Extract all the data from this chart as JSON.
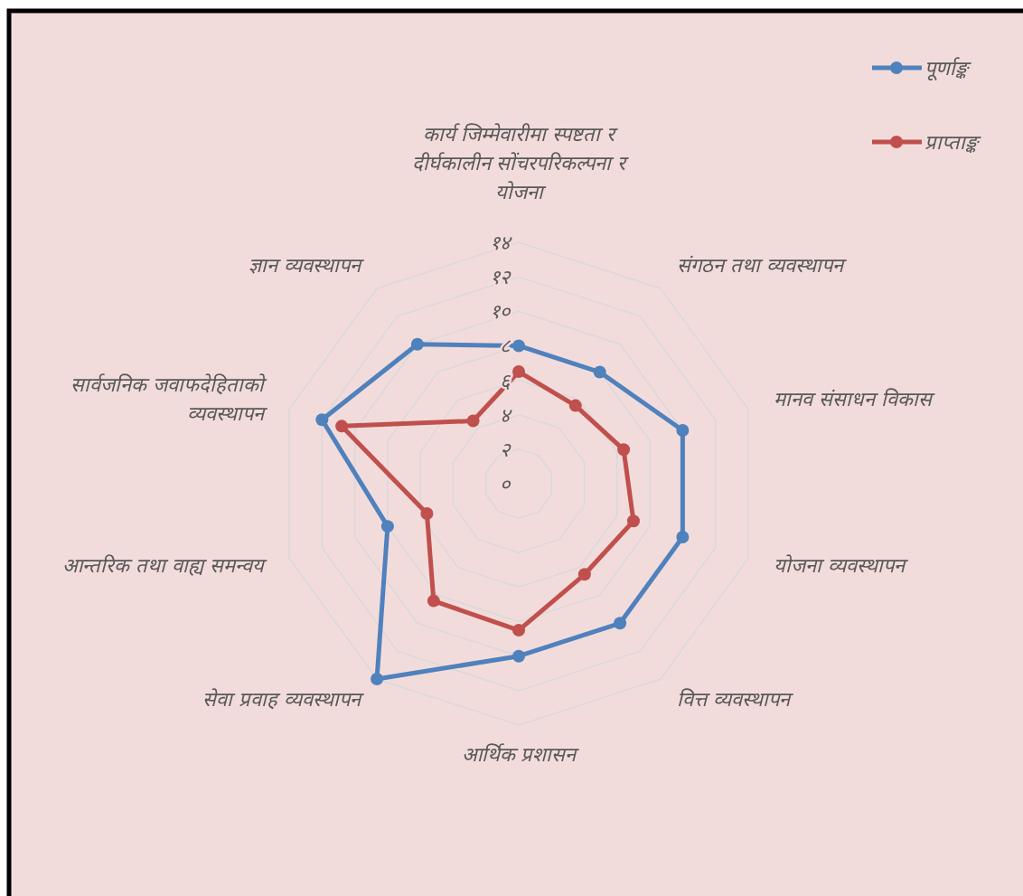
{
  "chart_data": {
    "type": "radar",
    "categories": [
      "कार्य जिम्मेवारीमा स्पष्टता र दीर्घकालीन सोंचरपरिकल्पना र योजना",
      "संगठन तथा व्यवस्थापन",
      "मानव संसाधन विकास",
      "योजना व्यवस्थापन",
      "वित्त व्यवस्थापन",
      "आर्थिक प्रशासन",
      "सेवा प्रवाह व्यवस्थापन",
      "आन्तरिक तथा वाह्य समन्वय",
      "सार्वजनिक जवाफदेहिताको व्यवस्थापन",
      "ज्ञान व्यवस्थापन"
    ],
    "series": [
      {
        "name": "पूर्णाङ्क",
        "color": "#4f81bd",
        "values": [
          8,
          8,
          10,
          10,
          10,
          10,
          14,
          8,
          12,
          10
        ]
      },
      {
        "name": "प्राप्ताङ्क",
        "color": "#c0504d",
        "values": [
          6.5,
          5.6,
          6.4,
          7,
          6.5,
          8.5,
          8.4,
          5.6,
          10.8,
          4.5
        ]
      }
    ],
    "ylim": [
      0,
      14
    ],
    "yticks": [
      {
        "value": 0,
        "label": "०"
      },
      {
        "value": 2,
        "label": "२"
      },
      {
        "value": 4,
        "label": "४"
      },
      {
        "value": 6,
        "label": "६"
      },
      {
        "value": 8,
        "label": "८"
      },
      {
        "value": 10,
        "label": "१०"
      },
      {
        "value": 12,
        "label": "१२"
      },
      {
        "value": 14,
        "label": "१४"
      }
    ],
    "grid": true,
    "legend": "top right",
    "marker": "circle",
    "line_style": "solid"
  }
}
